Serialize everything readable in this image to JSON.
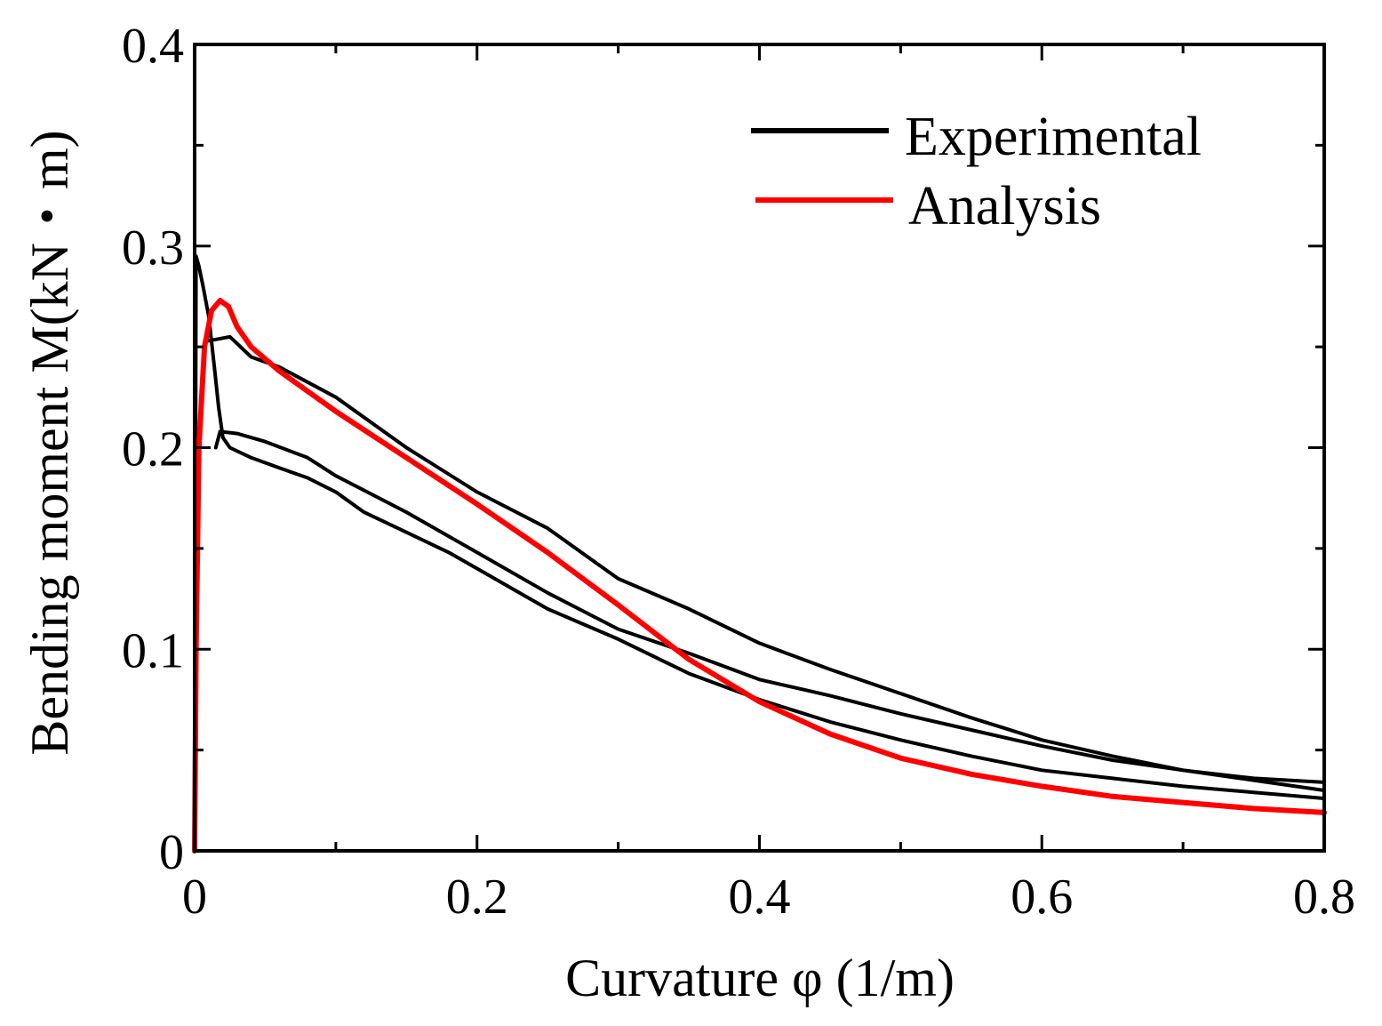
{
  "chart_data": {
    "type": "line",
    "title": "",
    "xlabel": "Curvature  φ (1/m)",
    "ylabel": "Bending moment M(kN・m)",
    "xlim": [
      0,
      0.8
    ],
    "ylim": [
      0,
      0.4
    ],
    "xticks": [
      0,
      0.2,
      0.4,
      0.6,
      0.8
    ],
    "xtick_labels": [
      "0",
      "0.2",
      "0.4",
      "0.6",
      "0.8"
    ],
    "yticks": [
      0,
      0.1,
      0.2,
      0.3,
      0.4
    ],
    "ytick_labels": [
      "0",
      "0.1",
      "0.2",
      "0.3",
      "0.4"
    ],
    "grid": false,
    "legend_position": "top-right",
    "series": [
      {
        "name": "Experimental",
        "color": "#000000",
        "curves": [
          [
            [
              0,
              0
            ],
            [
              0.0005,
              0.15
            ],
            [
              0.001,
              0.295
            ],
            [
              0.003,
              0.29
            ],
            [
              0.006,
              0.28
            ],
            [
              0.01,
              0.265
            ],
            [
              0.014,
              0.24
            ],
            [
              0.017,
              0.22
            ],
            [
              0.02,
              0.205
            ],
            [
              0.025,
              0.2
            ],
            [
              0.04,
              0.195
            ],
            [
              0.06,
              0.19
            ],
            [
              0.08,
              0.185
            ],
            [
              0.1,
              0.178
            ],
            [
              0.12,
              0.168
            ],
            [
              0.15,
              0.158
            ],
            [
              0.18,
              0.148
            ],
            [
              0.2,
              0.14
            ],
            [
              0.25,
              0.12
            ],
            [
              0.3,
              0.105
            ],
            [
              0.35,
              0.088
            ],
            [
              0.4,
              0.075
            ],
            [
              0.45,
              0.064
            ],
            [
              0.5,
              0.055
            ],
            [
              0.55,
              0.047
            ],
            [
              0.6,
              0.04
            ],
            [
              0.65,
              0.036
            ],
            [
              0.7,
              0.032
            ],
            [
              0.75,
              0.029
            ],
            [
              0.8,
              0.026
            ]
          ],
          [
            [
              0.015,
              0.2
            ],
            [
              0.018,
              0.208
            ],
            [
              0.03,
              0.207
            ],
            [
              0.05,
              0.203
            ],
            [
              0.08,
              0.195
            ],
            [
              0.1,
              0.186
            ],
            [
              0.15,
              0.168
            ],
            [
              0.2,
              0.148
            ],
            [
              0.25,
              0.128
            ],
            [
              0.3,
              0.11
            ],
            [
              0.35,
              0.098
            ],
            [
              0.4,
              0.085
            ],
            [
              0.45,
              0.077
            ],
            [
              0.5,
              0.068
            ],
            [
              0.55,
              0.06
            ],
            [
              0.6,
              0.052
            ],
            [
              0.65,
              0.045
            ],
            [
              0.7,
              0.04
            ],
            [
              0.75,
              0.035
            ],
            [
              0.8,
              0.03
            ]
          ],
          [
            [
              0.01,
              0.253
            ],
            [
              0.025,
              0.255
            ],
            [
              0.04,
              0.245
            ],
            [
              0.06,
              0.24
            ],
            [
              0.1,
              0.225
            ],
            [
              0.15,
              0.2
            ],
            [
              0.2,
              0.178
            ],
            [
              0.25,
              0.16
            ],
            [
              0.3,
              0.135
            ],
            [
              0.35,
              0.12
            ],
            [
              0.4,
              0.103
            ],
            [
              0.45,
              0.09
            ],
            [
              0.5,
              0.078
            ],
            [
              0.55,
              0.066
            ],
            [
              0.6,
              0.055
            ],
            [
              0.65,
              0.047
            ],
            [
              0.7,
              0.04
            ],
            [
              0.75,
              0.036
            ],
            [
              0.8,
              0.034
            ]
          ]
        ]
      },
      {
        "name": "Analysis",
        "color": "#ff0000",
        "curves": [
          [
            [
              0,
              0
            ],
            [
              0.001,
              0.1
            ],
            [
              0.003,
              0.2
            ],
            [
              0.007,
              0.25
            ],
            [
              0.012,
              0.268
            ],
            [
              0.018,
              0.273
            ],
            [
              0.024,
              0.27
            ],
            [
              0.03,
              0.26
            ],
            [
              0.04,
              0.25
            ],
            [
              0.06,
              0.238
            ],
            [
              0.1,
              0.218
            ],
            [
              0.15,
              0.195
            ],
            [
              0.2,
              0.172
            ],
            [
              0.25,
              0.148
            ],
            [
              0.3,
              0.122
            ],
            [
              0.35,
              0.095
            ],
            [
              0.4,
              0.074
            ],
            [
              0.45,
              0.058
            ],
            [
              0.5,
              0.046
            ],
            [
              0.55,
              0.038
            ],
            [
              0.6,
              0.032
            ],
            [
              0.65,
              0.027
            ],
            [
              0.7,
              0.024
            ],
            [
              0.75,
              0.021
            ],
            [
              0.8,
              0.019
            ]
          ]
        ]
      }
    ]
  }
}
